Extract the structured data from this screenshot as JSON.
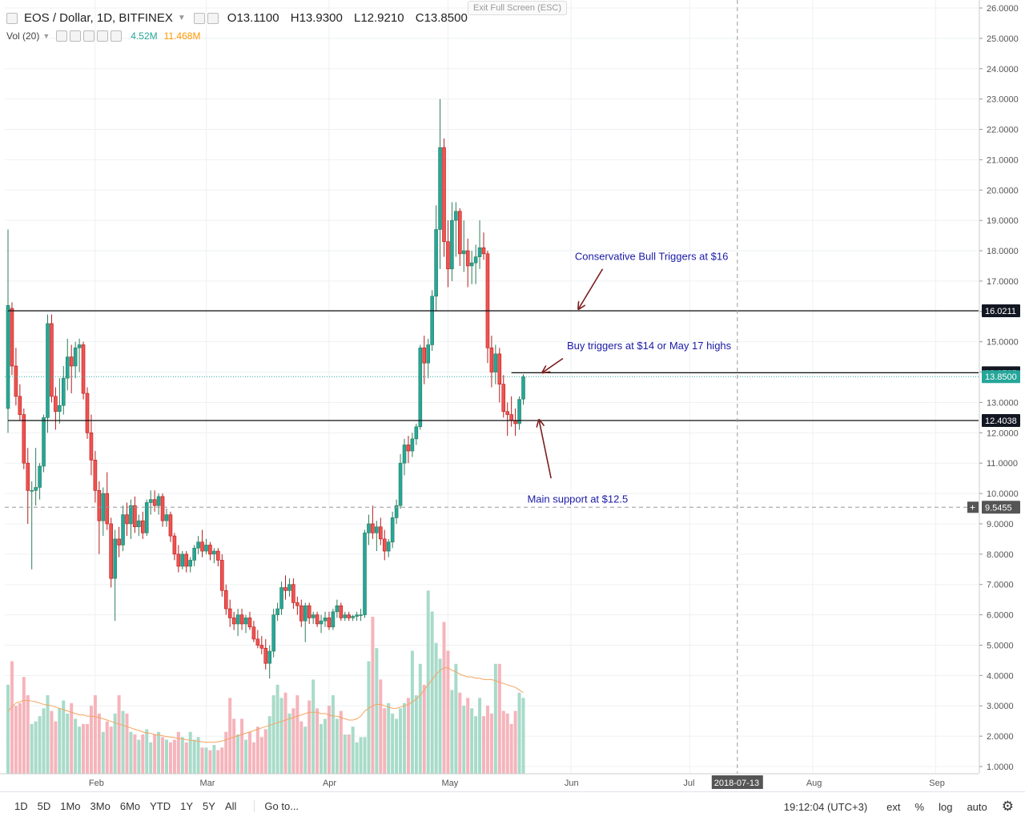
{
  "header": {
    "collapse_icon": "collapse-icon",
    "symbol_title": "EOS / Dollar, 1D, BITFINEX",
    "ohlc": {
      "open": "O13.1100",
      "high": "H13.9300",
      "low": "L12.9210",
      "close": "C13.8500"
    },
    "exit_fullscreen": "Exit Full Screen (ESC)"
  },
  "volume_legend": {
    "label": "Vol (20)",
    "volume": "4.52M",
    "volume_ma": "11.468M",
    "volume_color": "#26a69a",
    "volume_ma_color": "#ff9800"
  },
  "chart_data": {
    "type": "candlestick",
    "title": "EOS / Dollar, 1D, BITFINEX",
    "ylim": [
      0.6,
      26.2
    ],
    "y_ticks": [
      1,
      2,
      3,
      4,
      5,
      6,
      7,
      8,
      9,
      10,
      11,
      12,
      13,
      14,
      15,
      16,
      17,
      18,
      19,
      20,
      21,
      22,
      23,
      24,
      25,
      26
    ],
    "y_tick_labels": [
      "1.0000",
      "2.0000",
      "3.0000",
      "4.0000",
      "5.0000",
      "6.0000",
      "7.0000",
      "8.0000",
      "9.0000",
      "10.0000",
      "11.0000",
      "12.0000",
      "13.0000",
      "14.0000",
      "15.0000",
      "16.0000",
      "17.0000",
      "18.0000",
      "19.0000",
      "20.0000",
      "21.0000",
      "22.0000",
      "23.0000",
      "24.0000",
      "25.0000",
      "26.0000"
    ],
    "x_range": [
      "2018-01-10",
      "2018-09-30"
    ],
    "x_ticks": [
      {
        "date": "2018-02-01",
        "label": "Feb"
      },
      {
        "date": "2018-03-01",
        "label": "Mar"
      },
      {
        "date": "2018-04-01",
        "label": "Apr"
      },
      {
        "date": "2018-05-01",
        "label": "May"
      },
      {
        "date": "2018-06-01",
        "label": "Jun"
      },
      {
        "date": "2018-07-01",
        "label": "Jul"
      },
      {
        "date": "2018-08-01",
        "label": "Aug"
      },
      {
        "date": "2018-09-01",
        "label": "Sep"
      }
    ],
    "crosshair": {
      "date": "2018-07-13",
      "label": "2018-07-13",
      "price": 9.5455,
      "price_label": "9.5455"
    },
    "horizontal_lines": [
      {
        "price": 16.0211,
        "label": "16.0211",
        "start": "2018-01-10"
      },
      {
        "price": 13.9785,
        "label": "13.9785",
        "start": "2018-05-17"
      },
      {
        "price": 12.4038,
        "label": "12.4038",
        "start": "2018-01-10"
      }
    ],
    "last_price": {
      "price": 13.85,
      "label": "13.8500",
      "color": "#26a69a"
    },
    "annotations": [
      {
        "text": "Conservative Bull Triggers at $16",
        "date": "2018-06-02",
        "price": 17.7,
        "arrow_from": [
          "2018-06-09",
          17.4
        ],
        "arrow_to": [
          "2018-06-03",
          16.1
        ]
      },
      {
        "text": "Buy triggers at $14 or May 17 highs",
        "date": "2018-05-31",
        "price": 14.75,
        "arrow_from": [
          "2018-05-30",
          14.45
        ],
        "arrow_to": [
          "2018-05-25",
          14.0
        ]
      },
      {
        "text": "Main support at $12.5",
        "date": "2018-05-21",
        "price": 9.7,
        "arrow_from": [
          "2018-05-27",
          10.5
        ],
        "arrow_to": [
          "2018-05-24",
          12.4
        ]
      }
    ],
    "ohlc": [
      [
        "2018-01-10",
        12.8,
        18.7,
        12.0,
        16.2
      ],
      [
        "2018-01-11",
        16.1,
        16.3,
        13.9,
        14.2
      ],
      [
        "2018-01-12",
        14.2,
        14.8,
        12.9,
        13.2
      ],
      [
        "2018-01-13",
        13.2,
        13.6,
        12.4,
        12.6
      ],
      [
        "2018-01-14",
        12.6,
        12.8,
        10.8,
        11.0
      ],
      [
        "2018-01-15",
        11.0,
        11.5,
        9.0,
        10.1
      ],
      [
        "2018-01-16",
        10.1,
        10.4,
        7.5,
        10.1
      ],
      [
        "2018-01-17",
        10.1,
        11.5,
        9.6,
        10.2
      ],
      [
        "2018-01-18",
        10.2,
        11.0,
        9.8,
        10.9
      ],
      [
        "2018-01-19",
        10.9,
        12.6,
        10.7,
        12.5
      ],
      [
        "2018-01-20",
        12.5,
        15.9,
        12.0,
        15.6
      ],
      [
        "2018-01-21",
        15.6,
        15.9,
        13.0,
        13.2
      ],
      [
        "2018-01-22",
        13.2,
        13.5,
        12.1,
        12.7
      ],
      [
        "2018-01-23",
        12.7,
        13.8,
        12.3,
        12.9
      ],
      [
        "2018-01-24",
        12.9,
        14.2,
        12.6,
        13.8
      ],
      [
        "2018-01-25",
        13.8,
        15.1,
        13.4,
        14.5
      ],
      [
        "2018-01-26",
        14.5,
        14.9,
        13.3,
        14.2
      ],
      [
        "2018-01-27",
        14.2,
        15.0,
        13.8,
        14.8
      ],
      [
        "2018-01-28",
        14.8,
        15.1,
        14.0,
        14.9
      ],
      [
        "2018-01-29",
        14.9,
        15.0,
        13.1,
        13.3
      ],
      [
        "2018-01-30",
        13.3,
        13.5,
        11.8,
        12.0
      ],
      [
        "2018-01-31",
        12.0,
        12.6,
        10.6,
        11.1
      ],
      [
        "2018-02-01",
        11.1,
        11.4,
        9.7,
        10.1
      ],
      [
        "2018-02-02",
        10.1,
        10.4,
        8.0,
        9.1
      ],
      [
        "2018-02-03",
        9.1,
        10.2,
        8.6,
        10.0
      ],
      [
        "2018-02-04",
        10.0,
        10.7,
        8.8,
        9.0
      ],
      [
        "2018-02-05",
        9.0,
        9.2,
        6.9,
        7.2
      ],
      [
        "2018-02-06",
        7.2,
        8.8,
        5.8,
        8.5
      ],
      [
        "2018-02-07",
        8.5,
        8.9,
        7.9,
        8.3
      ],
      [
        "2018-02-08",
        8.3,
        9.6,
        8.1,
        9.3
      ],
      [
        "2018-02-09",
        9.3,
        9.7,
        8.6,
        9.0
      ],
      [
        "2018-02-10",
        9.0,
        9.8,
        8.5,
        9.6
      ],
      [
        "2018-02-11",
        9.6,
        9.9,
        8.7,
        8.9
      ],
      [
        "2018-02-12",
        8.9,
        9.3,
        8.6,
        9.1
      ],
      [
        "2018-02-13",
        9.1,
        9.4,
        8.5,
        8.7
      ],
      [
        "2018-02-14",
        8.7,
        9.8,
        8.6,
        9.7
      ],
      [
        "2018-02-15",
        9.7,
        10.1,
        9.3,
        9.8
      ],
      [
        "2018-02-16",
        9.8,
        10.1,
        9.4,
        9.6
      ],
      [
        "2018-02-17",
        9.6,
        10.0,
        9.3,
        9.9
      ],
      [
        "2018-02-18",
        9.9,
        10.0,
        8.9,
        9.1
      ],
      [
        "2018-02-19",
        9.1,
        9.5,
        8.9,
        9.3
      ],
      [
        "2018-02-20",
        9.3,
        9.4,
        8.4,
        8.6
      ],
      [
        "2018-02-21",
        8.6,
        8.7,
        7.8,
        8.0
      ],
      [
        "2018-02-22",
        8.0,
        8.3,
        7.4,
        7.6
      ],
      [
        "2018-02-23",
        7.6,
        8.1,
        7.5,
        8.0
      ],
      [
        "2018-02-24",
        8.0,
        8.1,
        7.4,
        7.6
      ],
      [
        "2018-02-25",
        7.6,
        7.9,
        7.4,
        7.8
      ],
      [
        "2018-02-26",
        7.8,
        8.3,
        7.6,
        8.2
      ],
      [
        "2018-02-27",
        8.2,
        8.6,
        8.0,
        8.4
      ],
      [
        "2018-02-28",
        8.4,
        8.8,
        7.9,
        8.1
      ],
      [
        "2018-03-01",
        8.1,
        8.5,
        8.0,
        8.3
      ],
      [
        "2018-03-02",
        8.3,
        8.4,
        7.8,
        8.0
      ],
      [
        "2018-03-03",
        8.0,
        8.2,
        7.7,
        8.1
      ],
      [
        "2018-03-04",
        8.1,
        8.2,
        7.6,
        7.8
      ],
      [
        "2018-03-05",
        7.8,
        8.0,
        6.6,
        6.8
      ],
      [
        "2018-03-06",
        6.8,
        7.0,
        6.0,
        6.2
      ],
      [
        "2018-03-07",
        6.2,
        6.5,
        5.6,
        5.9
      ],
      [
        "2018-03-08",
        5.9,
        6.1,
        5.5,
        5.7
      ],
      [
        "2018-03-09",
        5.7,
        6.2,
        5.3,
        6.0
      ],
      [
        "2018-03-10",
        6.0,
        6.2,
        5.5,
        5.7
      ],
      [
        "2018-03-11",
        5.7,
        6.0,
        5.4,
        5.9
      ],
      [
        "2018-03-12",
        5.9,
        6.1,
        5.5,
        5.6
      ],
      [
        "2018-03-13",
        5.6,
        5.8,
        5.1,
        5.2
      ],
      [
        "2018-03-14",
        5.2,
        5.5,
        4.9,
        5.0
      ],
      [
        "2018-03-15",
        5.0,
        5.3,
        4.7,
        4.9
      ],
      [
        "2018-03-16",
        4.9,
        5.2,
        4.2,
        4.4
      ],
      [
        "2018-03-17",
        4.4,
        5.0,
        3.9,
        4.8
      ],
      [
        "2018-03-18",
        4.8,
        6.2,
        4.6,
        6.0
      ],
      [
        "2018-03-19",
        6.0,
        6.4,
        5.8,
        6.2
      ],
      [
        "2018-03-20",
        6.2,
        7.1,
        6.0,
        6.9
      ],
      [
        "2018-03-21",
        6.9,
        7.3,
        6.5,
        6.8
      ],
      [
        "2018-03-22",
        6.8,
        7.2,
        6.6,
        7.0
      ],
      [
        "2018-03-23",
        7.0,
        7.2,
        6.2,
        6.4
      ],
      [
        "2018-03-24",
        6.4,
        6.6,
        6.0,
        6.3
      ],
      [
        "2018-03-25",
        6.3,
        6.5,
        5.6,
        5.8
      ],
      [
        "2018-03-26",
        5.8,
        6.4,
        5.1,
        6.3
      ],
      [
        "2018-03-27",
        6.3,
        6.4,
        5.7,
        5.9
      ],
      [
        "2018-03-28",
        5.9,
        6.1,
        5.7,
        6.0
      ],
      [
        "2018-03-29",
        6.0,
        6.1,
        5.6,
        5.7
      ],
      [
        "2018-03-30",
        5.7,
        6.0,
        5.4,
        5.8
      ],
      [
        "2018-03-31",
        5.8,
        6.1,
        5.6,
        5.9
      ],
      [
        "2018-04-01",
        5.9,
        6.1,
        5.5,
        5.6
      ],
      [
        "2018-04-02",
        5.6,
        6.2,
        5.5,
        6.1
      ],
      [
        "2018-04-03",
        6.1,
        6.5,
        5.9,
        6.3
      ],
      [
        "2018-04-04",
        6.3,
        6.4,
        5.8,
        5.9
      ],
      [
        "2018-04-05",
        5.9,
        6.1,
        5.8,
        6.0
      ],
      [
        "2018-04-06",
        6.0,
        6.1,
        5.8,
        5.9
      ],
      [
        "2018-04-07",
        5.9,
        6.0,
        5.8,
        5.95
      ],
      [
        "2018-04-08",
        5.95,
        6.1,
        5.8,
        6.0
      ],
      [
        "2018-04-09",
        6.0,
        6.2,
        5.8,
        6.0
      ],
      [
        "2018-04-10",
        6.0,
        8.8,
        5.9,
        8.7
      ],
      [
        "2018-04-11",
        8.7,
        9.3,
        8.3,
        9.0
      ],
      [
        "2018-04-12",
        9.0,
        9.6,
        8.5,
        8.7
      ],
      [
        "2018-04-13",
        8.7,
        9.1,
        8.1,
        8.9
      ],
      [
        "2018-04-14",
        8.9,
        9.2,
        8.3,
        8.5
      ],
      [
        "2018-04-15",
        8.5,
        8.8,
        7.8,
        8.1
      ],
      [
        "2018-04-16",
        8.1,
        8.5,
        7.9,
        8.4
      ],
      [
        "2018-04-17",
        8.4,
        9.4,
        8.2,
        9.2
      ],
      [
        "2018-04-18",
        9.2,
        9.8,
        9.0,
        9.6
      ],
      [
        "2018-04-19",
        9.6,
        11.3,
        9.5,
        11.0
      ],
      [
        "2018-04-20",
        11.0,
        11.8,
        10.6,
        11.6
      ],
      [
        "2018-04-21",
        11.6,
        11.9,
        11.0,
        11.4
      ],
      [
        "2018-04-22",
        11.4,
        12.0,
        11.2,
        11.8
      ],
      [
        "2018-04-23",
        11.8,
        12.3,
        11.6,
        12.2
      ],
      [
        "2018-04-24",
        12.2,
        14.9,
        12.1,
        14.8
      ],
      [
        "2018-04-25",
        14.8,
        15.2,
        13.6,
        14.3
      ],
      [
        "2018-04-26",
        14.3,
        15.1,
        13.8,
        14.9
      ],
      [
        "2018-04-27",
        14.9,
        16.7,
        14.7,
        16.5
      ],
      [
        "2018-04-28",
        16.5,
        19.5,
        16.0,
        18.7
      ],
      [
        "2018-04-29",
        18.7,
        23.0,
        17.4,
        21.4
      ],
      [
        "2018-04-30",
        21.4,
        21.7,
        17.8,
        18.3
      ],
      [
        "2018-05-01",
        18.3,
        19.0,
        16.8,
        17.4
      ],
      [
        "2018-05-02",
        17.4,
        19.6,
        17.0,
        19.0
      ],
      [
        "2018-05-03",
        19.0,
        19.6,
        17.8,
        19.3
      ],
      [
        "2018-05-04",
        19.3,
        19.4,
        17.5,
        17.9
      ],
      [
        "2018-05-05",
        17.9,
        19.0,
        17.3,
        18.0
      ],
      [
        "2018-05-06",
        18.0,
        18.4,
        16.8,
        17.5
      ],
      [
        "2018-05-07",
        17.5,
        18.0,
        16.9,
        17.6
      ],
      [
        "2018-05-08",
        17.6,
        18.2,
        16.9,
        17.8
      ],
      [
        "2018-05-09",
        17.8,
        19.0,
        17.4,
        18.1
      ],
      [
        "2018-05-10",
        18.1,
        18.6,
        17.7,
        17.9
      ],
      [
        "2018-05-11",
        17.9,
        18.0,
        14.3,
        14.8
      ],
      [
        "2018-05-12",
        14.8,
        15.2,
        13.5,
        14.0
      ],
      [
        "2018-05-13",
        14.0,
        14.9,
        13.6,
        14.6
      ],
      [
        "2018-05-14",
        14.6,
        14.8,
        13.0,
        13.6
      ],
      [
        "2018-05-15",
        13.6,
        13.9,
        12.5,
        12.7
      ],
      [
        "2018-05-16",
        12.7,
        13.0,
        11.9,
        12.6
      ],
      [
        "2018-05-17",
        12.6,
        13.2,
        12.2,
        12.4
      ],
      [
        "2018-05-18",
        12.4,
        12.8,
        11.9,
        12.3
      ],
      [
        "2018-05-19",
        12.3,
        13.2,
        12.1,
        13.1
      ],
      [
        "2018-05-20",
        13.11,
        13.93,
        12.921,
        13.85
      ]
    ],
    "volume": {
      "label": "Vol (20)",
      "ylim": [
        0,
        7.5
      ],
      "values": [
        3.4,
        4.3,
        2.6,
        2.7,
        3.7,
        3.0,
        1.9,
        2.0,
        2.2,
        2.5,
        3.0,
        2.4,
        2.0,
        2.5,
        2.8,
        2.3,
        2.7,
        2.1,
        1.8,
        1.9,
        1.9,
        2.6,
        3.0,
        2.3,
        1.6,
        2.0,
        1.8,
        2.3,
        3.0,
        2.4,
        2.3,
        1.6,
        1.5,
        1.3,
        1.5,
        1.7,
        1.2,
        1.5,
        1.6,
        1.4,
        1.3,
        1.2,
        1.3,
        1.6,
        1.4,
        1.2,
        1.6,
        1.3,
        1.4,
        1.0,
        1.0,
        0.9,
        1.1,
        0.9,
        1.0,
        1.6,
        2.9,
        2.1,
        1.5,
        2.1,
        1.3,
        1.6,
        1.2,
        1.8,
        1.4,
        1.7,
        2.2,
        3.0,
        3.4,
        2.9,
        3.1,
        2.3,
        2.5,
        3.0,
        2.0,
        1.8,
        2.8,
        3.6,
        2.5,
        1.9,
        2.1,
        2.6,
        3.0,
        2.1,
        2.4,
        1.5,
        1.5,
        1.8,
        1.2,
        1.4,
        1.4,
        4.3,
        6.0,
        4.8,
        3.6,
        2.5,
        2.7,
        2.3,
        2.1,
        2.5,
        2.7,
        2.9,
        4.7,
        3.0,
        4.2,
        3.4,
        7.0,
        6.2,
        5.0,
        4.4,
        5.8,
        4.7,
        3.2,
        4.2,
        3.1,
        2.6,
        2.9,
        2.5,
        2.2,
        2.9,
        2.2,
        2.6,
        2.3,
        4.2,
        4.2,
        2.4,
        2.3,
        1.9,
        2.4,
        3.1,
        2.9,
        3.3,
        2.7,
        1.6,
        1.5
      ],
      "ma20": [
        2.4,
        2.55,
        2.7,
        2.75,
        2.8,
        2.8,
        2.78,
        2.75,
        2.7,
        2.65,
        2.62,
        2.6,
        2.55,
        2.5,
        2.45,
        2.4,
        2.35,
        2.3,
        2.25,
        2.25,
        2.2,
        2.2,
        2.18,
        2.15,
        2.1,
        2.05,
        2.0,
        1.95,
        1.9,
        1.85,
        1.8,
        1.75,
        1.7,
        1.65,
        1.6,
        1.55,
        1.55,
        1.5,
        1.48,
        1.45,
        1.42,
        1.4,
        1.38,
        1.35,
        1.33,
        1.3,
        1.28,
        1.26,
        1.24,
        1.22,
        1.2,
        1.2,
        1.2,
        1.22,
        1.25,
        1.3,
        1.35,
        1.4,
        1.45,
        1.5,
        1.55,
        1.6,
        1.65,
        1.7,
        1.75,
        1.8,
        1.85,
        1.9,
        1.95,
        2.0,
        2.05,
        2.1,
        2.15,
        2.2,
        2.25,
        2.3,
        2.35,
        2.35,
        2.35,
        2.3,
        2.3,
        2.25,
        2.2,
        2.2,
        2.15,
        2.1,
        2.05,
        2.05,
        2.1,
        2.2,
        2.4,
        2.5,
        2.6,
        2.65,
        2.65,
        2.6,
        2.55,
        2.5,
        2.5,
        2.55,
        2.6,
        2.65,
        2.75,
        2.85,
        3.0,
        3.2,
        3.4,
        3.6,
        3.8,
        3.95,
        4.05,
        4.05,
        3.95,
        3.9,
        3.8,
        3.75,
        3.7,
        3.7,
        3.65,
        3.65,
        3.6,
        3.6,
        3.6,
        3.55,
        3.5,
        3.45,
        3.4,
        3.35,
        3.3,
        3.2,
        3.1,
        3.0,
        2.9
      ]
    }
  },
  "bottom_toolbar": {
    "timeframes": [
      "1D",
      "5D",
      "1Mo",
      "3Mo",
      "6Mo",
      "YTD",
      "1Y",
      "5Y",
      "All"
    ],
    "goto_label": "Go to...",
    "clock": "19:12:04 (UTC+3)",
    "ext_label": "ext",
    "percent_label": "%",
    "log_label": "log",
    "auto_label": "auto",
    "settings_icon": "gear-icon"
  },
  "colors": {
    "up": "#26a69a",
    "down": "#ef5350",
    "vol_up": "#a8dbc9",
    "vol_down": "#f5b4bb",
    "annotation_text": "#1a1aa6",
    "arrow": "#7b1e1e",
    "grid": "#eef0f3"
  }
}
